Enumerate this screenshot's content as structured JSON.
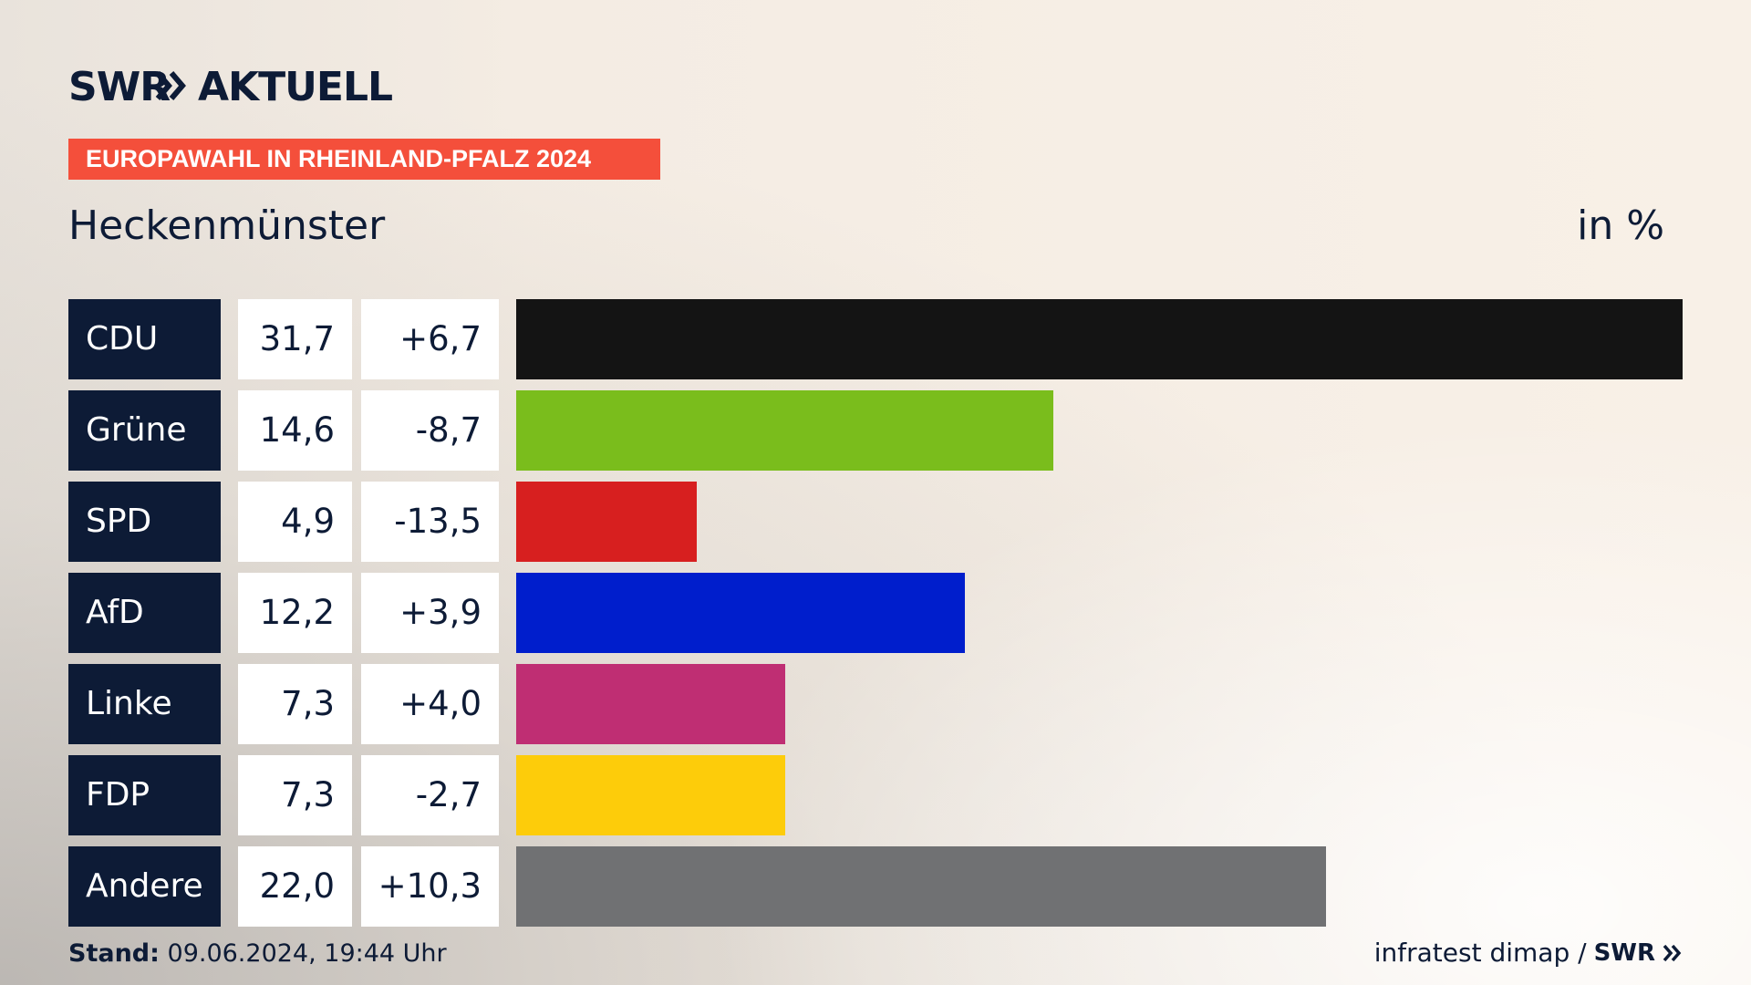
{
  "header": {
    "logo_text": "SWR",
    "logo_suffix": "AKTUELL",
    "tag": "EUROPAWAHL IN RHEINLAND-PFALZ 2024",
    "region": "Heckenmünster",
    "unit": "in %"
  },
  "chart_data": {
    "type": "bar",
    "title": "Heckenmünster",
    "subtitle": "EUROPAWAHL IN RHEINLAND-PFALZ 2024",
    "unit": "in %",
    "categories": [
      "CDU",
      "Grüne",
      "SPD",
      "AfD",
      "Linke",
      "FDP",
      "Andere"
    ],
    "values": [
      31.7,
      14.6,
      4.9,
      12.2,
      7.3,
      7.3,
      22.0
    ],
    "value_labels": [
      "31,7",
      "14,6",
      "4,9",
      "12,2",
      "7,3",
      "7,3",
      "22,0"
    ],
    "diff_labels": [
      "+6,7",
      "-8,7",
      "-13,5",
      "+3,9",
      "+4,0",
      "-2,7",
      "+10,3"
    ],
    "colors": [
      "#141414",
      "#7abd1c",
      "#d71f1f",
      "#001ecc",
      "#bf2e73",
      "#fdcc0a",
      "#707173"
    ],
    "orientation": "horizontal",
    "xlim": [
      0,
      31.7
    ]
  },
  "footer": {
    "stand_label": "Stand:",
    "stand_value": "09.06.2024, 19:44 Uhr",
    "source": "infratest dimap /",
    "brand": "SWR"
  }
}
